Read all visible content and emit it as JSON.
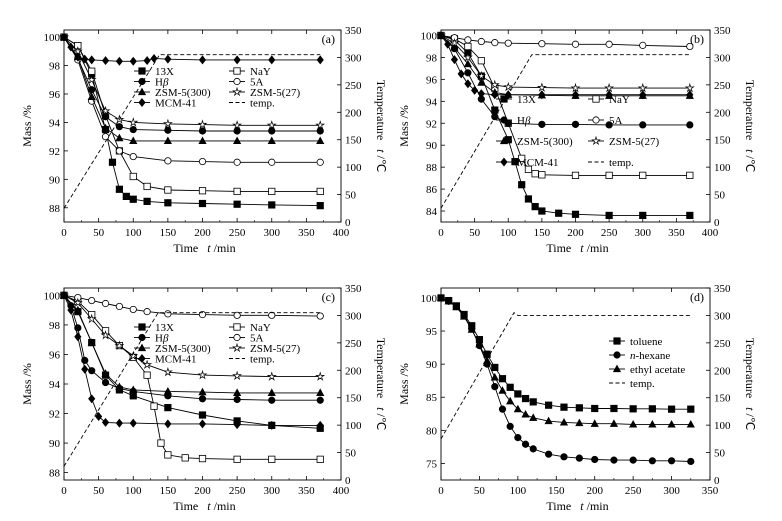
{
  "chart_data": [
    {
      "type": "line",
      "panel_label": "(a)",
      "xlabel": "Time",
      "xlabel_var": "t",
      "xlabel_unit": "/min",
      "ylabel": "Mass /%",
      "y2label": "Temperature",
      "y2label_var": "t",
      "y2label_unit": "/℃",
      "xlim": [
        0,
        400
      ],
      "xticks": [
        0,
        50,
        100,
        150,
        200,
        250,
        300,
        350,
        400
      ],
      "ylim": [
        87,
        100.5
      ],
      "yticks": [
        88,
        90,
        92,
        94,
        96,
        98,
        100
      ],
      "y2lim": [
        0,
        350
      ],
      "y2ticks": [
        0,
        50,
        100,
        150,
        200,
        250,
        300,
        350
      ],
      "legend_cols": 2,
      "series": [
        {
          "name": "13X",
          "marker": "square-filled",
          "x": [
            0,
            20,
            40,
            60,
            70,
            80,
            90,
            100,
            120,
            150,
            200,
            250,
            300,
            370
          ],
          "y": [
            100,
            99.4,
            97.4,
            93.5,
            91.2,
            89.3,
            88.8,
            88.6,
            88.45,
            88.35,
            88.3,
            88.25,
            88.2,
            88.15
          ]
        },
        {
          "name": "NaY",
          "marker": "square-open",
          "x": [
            0,
            20,
            40,
            60,
            80,
            100,
            120,
            150,
            200,
            250,
            300,
            370
          ],
          "y": [
            100,
            99.4,
            97.6,
            94.5,
            92.0,
            90.2,
            89.5,
            89.25,
            89.2,
            89.15,
            89.15,
            89.15
          ]
        },
        {
          "name": "Hβ",
          "marker": "circle-filled",
          "x": [
            0,
            20,
            40,
            60,
            80,
            100,
            150,
            200,
            250,
            300,
            370
          ],
          "y": [
            100,
            98.5,
            96.3,
            94.4,
            93.7,
            93.5,
            93.45,
            93.4,
            93.4,
            93.4,
            93.4
          ]
        },
        {
          "name": "5A",
          "marker": "circle-open",
          "x": [
            0,
            20,
            40,
            60,
            80,
            100,
            150,
            200,
            250,
            300,
            370
          ],
          "y": [
            100,
            98.4,
            95.5,
            93.0,
            92.0,
            91.6,
            91.3,
            91.25,
            91.2,
            91.2,
            91.2
          ]
        },
        {
          "name": "ZSM-5(300)",
          "marker": "triangle-filled",
          "x": [
            0,
            20,
            40,
            60,
            80,
            100,
            150,
            200,
            250,
            300,
            370
          ],
          "y": [
            100,
            98.6,
            95.8,
            93.6,
            92.9,
            92.7,
            92.7,
            92.7,
            92.7,
            92.7,
            92.7
          ]
        },
        {
          "name": "ZSM-5(27)",
          "marker": "star-open",
          "x": [
            0,
            20,
            40,
            60,
            80,
            100,
            150,
            200,
            250,
            300,
            370
          ],
          "y": [
            100,
            99.0,
            97.0,
            94.8,
            94.2,
            94.0,
            93.9,
            93.85,
            93.8,
            93.8,
            93.8
          ]
        },
        {
          "name": "MCM-41",
          "marker": "diamond-filled",
          "x": [
            0,
            10,
            20,
            30,
            40,
            60,
            80,
            100,
            120,
            130,
            150,
            200,
            250,
            300,
            370
          ],
          "y": [
            100,
            99.3,
            98.6,
            98.45,
            98.4,
            98.35,
            98.3,
            98.3,
            98.35,
            98.5,
            98.45,
            98.4,
            98.4,
            98.4,
            98.4
          ]
        },
        {
          "name": "temp.",
          "marker": "none",
          "dashed": true,
          "axis": "right",
          "x": [
            0,
            138,
            370
          ],
          "y": [
            25,
            305,
            305
          ]
        }
      ]
    },
    {
      "type": "line",
      "panel_label": "(b)",
      "xlabel": "Time",
      "xlabel_var": "t",
      "xlabel_unit": "/min",
      "ylabel": "Mass /%",
      "y2label": "Temperature",
      "y2label_var": "t",
      "y2label_unit": "/℃",
      "xlim": [
        0,
        400
      ],
      "xticks": [
        0,
        50,
        100,
        150,
        200,
        250,
        300,
        350,
        400
      ],
      "ylim": [
        83,
        100.5
      ],
      "yticks": [
        84,
        86,
        88,
        90,
        92,
        94,
        96,
        98,
        100
      ],
      "y2lim": [
        0,
        350
      ],
      "y2ticks": [
        0,
        50,
        100,
        150,
        200,
        250,
        300,
        350
      ],
      "legend_cols": 2,
      "series": [
        {
          "name": "13X",
          "marker": "square-filled",
          "x": [
            0,
            20,
            40,
            60,
            80,
            100,
            110,
            120,
            130,
            140,
            150,
            175,
            200,
            250,
            300,
            370
          ],
          "y": [
            100,
            99.6,
            98.4,
            96.3,
            93.2,
            90.5,
            88.5,
            86.4,
            85.1,
            84.4,
            84.0,
            83.8,
            83.7,
            83.6,
            83.6,
            83.6
          ]
        },
        {
          "name": "NaY",
          "marker": "square-open",
          "x": [
            0,
            20,
            40,
            60,
            80,
            100,
            120,
            130,
            140,
            150,
            200,
            250,
            300,
            370
          ],
          "y": [
            100,
            99.7,
            99.0,
            97.7,
            95.2,
            92.0,
            88.8,
            87.8,
            87.4,
            87.3,
            87.25,
            87.25,
            87.25,
            87.25
          ]
        },
        {
          "name": "Hβ",
          "marker": "circle-filled",
          "x": [
            0,
            20,
            40,
            60,
            80,
            100,
            150,
            200,
            250,
            300,
            370
          ],
          "y": [
            100,
            98.8,
            96.6,
            94.2,
            92.6,
            92.0,
            91.9,
            91.9,
            91.85,
            91.85,
            91.85
          ]
        },
        {
          "name": "5A",
          "marker": "circle-open",
          "x": [
            0,
            20,
            40,
            60,
            80,
            100,
            150,
            200,
            250,
            300,
            370
          ],
          "y": [
            100,
            99.8,
            99.6,
            99.45,
            99.35,
            99.3,
            99.25,
            99.2,
            99.2,
            99.1,
            99.0
          ]
        },
        {
          "name": "ZSM-5(300)",
          "marker": "triangle-filled",
          "x": [
            0,
            20,
            40,
            60,
            80,
            100,
            150,
            200,
            250,
            300,
            370
          ],
          "y": [
            100,
            98.9,
            97.4,
            95.7,
            94.8,
            94.6,
            94.55,
            94.5,
            94.5,
            94.5,
            94.5
          ]
        },
        {
          "name": "ZSM-5(27)",
          "marker": "star-open",
          "x": [
            0,
            20,
            40,
            60,
            80,
            100,
            150,
            200,
            250,
            300,
            370
          ],
          "y": [
            100,
            99.3,
            98.0,
            96.3,
            95.5,
            95.3,
            95.25,
            95.2,
            95.2,
            95.2,
            95.2
          ]
        },
        {
          "name": "MCM-41",
          "marker": "diamond-filled",
          "x": [
            0,
            10,
            20,
            30,
            40,
            50,
            60,
            80,
            100,
            150,
            200,
            250,
            300,
            370
          ],
          "y": [
            100,
            99.2,
            97.8,
            96.5,
            95.6,
            95.0,
            94.7,
            94.6,
            94.6,
            94.6,
            94.6,
            94.6,
            94.6,
            94.6
          ]
        },
        {
          "name": "temp.",
          "marker": "none",
          "dashed": true,
          "axis": "right",
          "x": [
            0,
            135,
            370
          ],
          "y": [
            25,
            305,
            305
          ]
        }
      ]
    },
    {
      "type": "line",
      "panel_label": "(c)",
      "xlabel": "Time",
      "xlabel_var": "t",
      "xlabel_unit": "/min",
      "ylabel": "Mass /%",
      "y2label": "Temperature",
      "y2label_var": "t",
      "y2label_unit": "/℃",
      "xlim": [
        0,
        400
      ],
      "xticks": [
        0,
        50,
        100,
        150,
        200,
        250,
        300,
        350,
        400
      ],
      "ylim": [
        87.5,
        100.5
      ],
      "yticks": [
        88,
        90,
        92,
        94,
        96,
        98,
        100
      ],
      "y2lim": [
        0,
        350
      ],
      "y2ticks": [
        0,
        50,
        100,
        150,
        200,
        250,
        300,
        350
      ],
      "legend_cols": 2,
      "series": [
        {
          "name": "13X",
          "marker": "square-filled",
          "x": [
            0,
            20,
            40,
            60,
            80,
            100,
            150,
            200,
            250,
            300,
            370
          ],
          "y": [
            100,
            98.9,
            96.8,
            94.6,
            93.6,
            93.2,
            92.4,
            91.9,
            91.5,
            91.2,
            91.0
          ]
        },
        {
          "name": "NaY",
          "marker": "square-open",
          "x": [
            0,
            20,
            40,
            60,
            80,
            100,
            120,
            130,
            140,
            150,
            175,
            200,
            250,
            300,
            370
          ],
          "y": [
            100,
            99.6,
            98.7,
            97.6,
            96.6,
            95.8,
            94.6,
            92.5,
            90.0,
            89.2,
            89.0,
            88.95,
            88.9,
            88.9,
            88.9
          ]
        },
        {
          "name": "Hβ",
          "marker": "circle-filled",
          "x": [
            0,
            10,
            20,
            30,
            40,
            60,
            80,
            100,
            150,
            200,
            250,
            300,
            370
          ],
          "y": [
            100,
            99.3,
            97.8,
            95.6,
            94.9,
            94.1,
            93.7,
            93.5,
            93.2,
            93.0,
            92.95,
            92.9,
            92.9
          ]
        },
        {
          "name": "5A",
          "marker": "circle-open",
          "x": [
            0,
            20,
            40,
            60,
            80,
            100,
            120,
            150,
            200,
            250,
            300,
            370
          ],
          "y": [
            100,
            99.85,
            99.65,
            99.45,
            99.25,
            99.05,
            98.9,
            98.75,
            98.7,
            98.65,
            98.65,
            98.6
          ]
        },
        {
          "name": "ZSM-5(300)",
          "marker": "triangle-filled",
          "x": [
            0,
            20,
            40,
            60,
            80,
            100,
            150,
            200,
            250,
            300,
            370
          ],
          "y": [
            100,
            99.0,
            96.8,
            94.7,
            93.8,
            93.6,
            93.5,
            93.45,
            93.4,
            93.4,
            93.4
          ]
        },
        {
          "name": "ZSM-5(27)",
          "marker": "star-open",
          "x": [
            0,
            20,
            40,
            60,
            80,
            100,
            120,
            150,
            200,
            250,
            300,
            370
          ],
          "y": [
            100,
            99.5,
            98.4,
            97.3,
            96.6,
            95.9,
            95.3,
            94.8,
            94.6,
            94.55,
            94.5,
            94.5
          ]
        },
        {
          "name": "MCM-41",
          "marker": "diamond-filled",
          "x": [
            0,
            10,
            20,
            30,
            40,
            50,
            60,
            80,
            100,
            150,
            200,
            250,
            300,
            370
          ],
          "y": [
            100,
            99.0,
            97.2,
            95.0,
            93.0,
            91.8,
            91.4,
            91.35,
            91.35,
            91.3,
            91.3,
            91.25,
            91.2,
            91.2
          ]
        },
        {
          "name": "temp.",
          "marker": "none",
          "dashed": true,
          "axis": "right",
          "x": [
            0,
            136,
            370
          ],
          "y": [
            25,
            305,
            305
          ]
        }
      ]
    },
    {
      "type": "line",
      "panel_label": "(d)",
      "xlabel": "Time",
      "xlabel_var": "t",
      "xlabel_unit": "/min",
      "ylabel": "Mass /%",
      "y2label": "Temperature",
      "y2label_var": "t",
      "y2label_unit": "/℃",
      "xlim": [
        0,
        350
      ],
      "xticks": [
        0,
        50,
        100,
        150,
        200,
        250,
        300,
        350
      ],
      "ylim": [
        72.5,
        101.5
      ],
      "yticks": [
        75,
        80,
        85,
        90,
        95,
        100
      ],
      "y2lim": [
        0,
        350
      ],
      "y2ticks": [
        0,
        50,
        100,
        150,
        200,
        250,
        300,
        350
      ],
      "legend_cols": 1,
      "series": [
        {
          "name": "toluene",
          "marker": "square-filled",
          "x": [
            0,
            10,
            20,
            30,
            40,
            50,
            60,
            70,
            80,
            90,
            100,
            110,
            120,
            140,
            160,
            180,
            200,
            225,
            250,
            275,
            300,
            325
          ],
          "y": [
            100,
            99.6,
            98.8,
            97.5,
            95.8,
            93.7,
            91.5,
            89.5,
            87.8,
            86.5,
            85.5,
            84.8,
            84.3,
            83.8,
            83.5,
            83.4,
            83.3,
            83.3,
            83.25,
            83.25,
            83.2,
            83.2
          ]
        },
        {
          "name": "n-hexane",
          "marker": "circle-filled",
          "x": [
            0,
            10,
            20,
            30,
            40,
            50,
            60,
            70,
            80,
            90,
            100,
            110,
            120,
            140,
            160,
            180,
            200,
            225,
            250,
            275,
            300,
            325
          ],
          "y": [
            100,
            99.5,
            98.7,
            97.3,
            95.3,
            92.8,
            90.0,
            86.6,
            83.2,
            80.6,
            78.9,
            77.9,
            77.2,
            76.4,
            76.0,
            75.8,
            75.6,
            75.5,
            75.5,
            75.4,
            75.4,
            75.3
          ]
        },
        {
          "name": "ethyl acetate",
          "marker": "triangle-filled",
          "x": [
            0,
            10,
            20,
            30,
            40,
            50,
            60,
            70,
            80,
            90,
            100,
            110,
            120,
            140,
            160,
            180,
            200,
            225,
            250,
            275,
            300,
            325
          ],
          "y": [
            100,
            99.5,
            98.6,
            97.2,
            95.2,
            93.0,
            90.5,
            88.0,
            86.0,
            84.4,
            83.2,
            82.4,
            81.9,
            81.4,
            81.2,
            81.1,
            81.0,
            81.0,
            80.9,
            80.9,
            80.9,
            80.9
          ]
        },
        {
          "name": "temp.",
          "marker": "none",
          "dashed": true,
          "axis": "right",
          "x": [
            0,
            95,
            100,
            325
          ],
          "y": [
            75,
            305,
            300,
            300
          ]
        }
      ]
    }
  ]
}
